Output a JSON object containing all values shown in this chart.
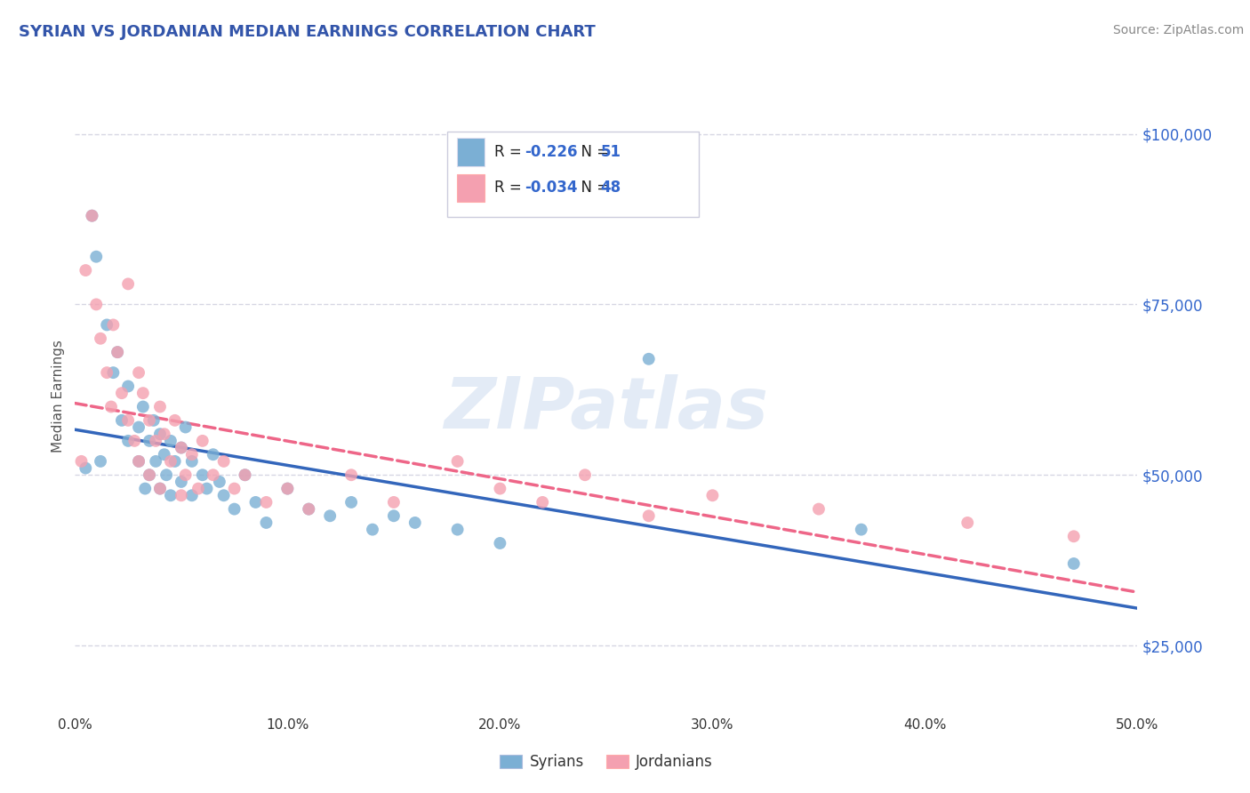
{
  "title": "SYRIAN VS JORDANIAN MEDIAN EARNINGS CORRELATION CHART",
  "source": "Source: ZipAtlas.com",
  "ylabel": "Median Earnings",
  "xlim": [
    0.0,
    0.5
  ],
  "ylim": [
    15000,
    108000
  ],
  "yticks": [
    25000,
    50000,
    75000,
    100000
  ],
  "ytick_labels": [
    "$25,000",
    "$50,000",
    "$75,000",
    "$100,000"
  ],
  "xticks": [
    0.0,
    0.1,
    0.2,
    0.3,
    0.4,
    0.5
  ],
  "xtick_labels": [
    "0.0%",
    "10.0%",
    "20.0%",
    "30.0%",
    "40.0%",
    "50.0%"
  ],
  "syrians_x": [
    0.005,
    0.008,
    0.01,
    0.012,
    0.015,
    0.018,
    0.02,
    0.022,
    0.025,
    0.025,
    0.03,
    0.03,
    0.032,
    0.033,
    0.035,
    0.035,
    0.037,
    0.038,
    0.04,
    0.04,
    0.042,
    0.043,
    0.045,
    0.045,
    0.047,
    0.05,
    0.05,
    0.052,
    0.055,
    0.055,
    0.06,
    0.062,
    0.065,
    0.068,
    0.07,
    0.075,
    0.08,
    0.085,
    0.09,
    0.1,
    0.11,
    0.12,
    0.13,
    0.14,
    0.15,
    0.16,
    0.18,
    0.2,
    0.27,
    0.37,
    0.47
  ],
  "syrians_y": [
    51000,
    88000,
    82000,
    52000,
    72000,
    65000,
    68000,
    58000,
    55000,
    63000,
    52000,
    57000,
    60000,
    48000,
    55000,
    50000,
    58000,
    52000,
    56000,
    48000,
    53000,
    50000,
    55000,
    47000,
    52000,
    54000,
    49000,
    57000,
    52000,
    47000,
    50000,
    48000,
    53000,
    49000,
    47000,
    45000,
    50000,
    46000,
    43000,
    48000,
    45000,
    44000,
    46000,
    42000,
    44000,
    43000,
    42000,
    40000,
    67000,
    42000,
    37000
  ],
  "jordanians_x": [
    0.003,
    0.005,
    0.008,
    0.01,
    0.012,
    0.015,
    0.017,
    0.018,
    0.02,
    0.022,
    0.025,
    0.025,
    0.028,
    0.03,
    0.03,
    0.032,
    0.035,
    0.035,
    0.038,
    0.04,
    0.04,
    0.042,
    0.045,
    0.047,
    0.05,
    0.05,
    0.052,
    0.055,
    0.058,
    0.06,
    0.065,
    0.07,
    0.075,
    0.08,
    0.09,
    0.1,
    0.11,
    0.13,
    0.15,
    0.18,
    0.2,
    0.22,
    0.24,
    0.27,
    0.3,
    0.35,
    0.42,
    0.47
  ],
  "jordanians_y": [
    52000,
    80000,
    88000,
    75000,
    70000,
    65000,
    60000,
    72000,
    68000,
    62000,
    78000,
    58000,
    55000,
    65000,
    52000,
    62000,
    58000,
    50000,
    55000,
    60000,
    48000,
    56000,
    52000,
    58000,
    54000,
    47000,
    50000,
    53000,
    48000,
    55000,
    50000,
    52000,
    48000,
    50000,
    46000,
    48000,
    45000,
    50000,
    46000,
    52000,
    48000,
    46000,
    50000,
    44000,
    47000,
    45000,
    43000,
    41000
  ],
  "syrian_color": "#7bafd4",
  "jordanian_color": "#f4a0b0",
  "syrian_line_color": "#3366bb",
  "jordanian_line_color": "#ee6688",
  "watermark": "ZIPatlas",
  "background_color": "#ffffff",
  "grid_color": "#9999bb",
  "title_color": "#3355aa",
  "axis_label_color": "#555555",
  "tick_label_color_y": "#3366cc",
  "tick_label_color_x": "#333333",
  "syrian_r": "-0.226",
  "syrian_n": "51",
  "jordanian_r": "-0.034",
  "jordanian_n": "48",
  "source_color": "#888888",
  "legend_box_color": "#ddddee",
  "legend_edge_color": "#ccccdd"
}
